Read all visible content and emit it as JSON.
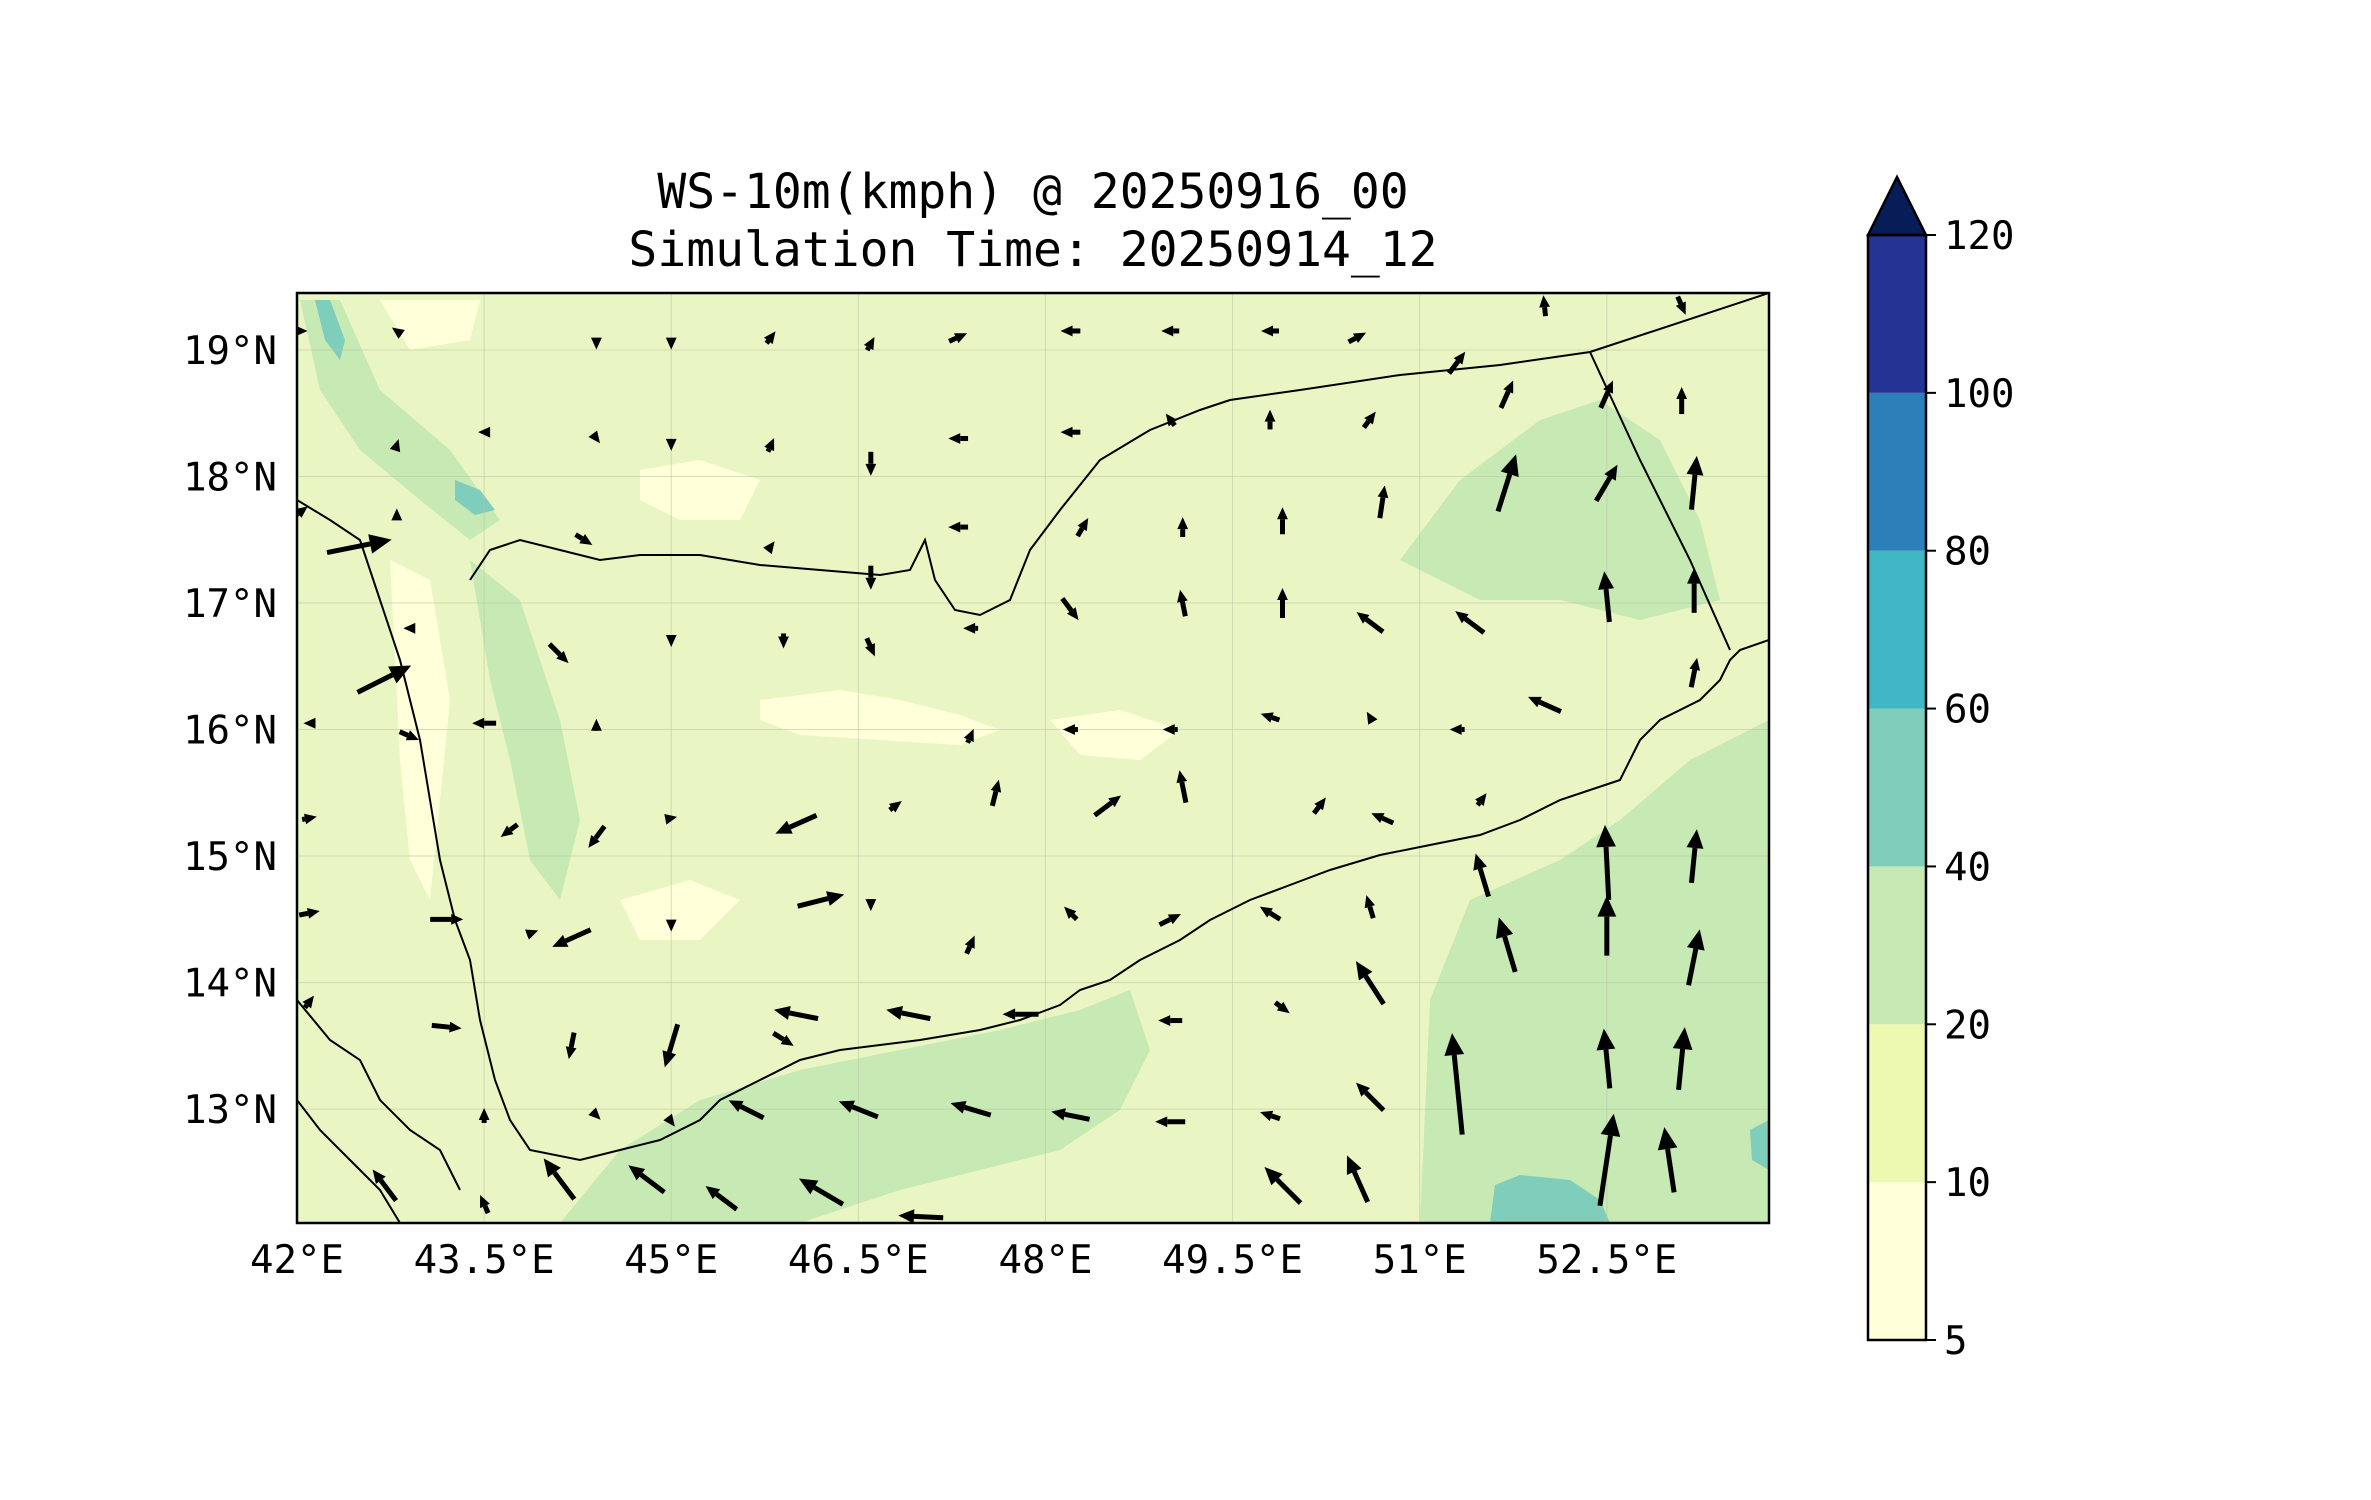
{
  "figure": {
    "title_line1": "WS-10m(kmph) @ 20250916_00",
    "title_line2": "Simulation Time: 20250914_12"
  },
  "map": {
    "lon_range": [
      42.0,
      53.8
    ],
    "lat_range": [
      12.1,
      19.45
    ],
    "lon_ticks": [
      "42°E",
      "43.5°E",
      "45°E",
      "46.5°E",
      "48°E",
      "49.5°E",
      "51°E",
      "52.5°E"
    ],
    "lon_tick_values": [
      42.0,
      43.5,
      45.0,
      46.5,
      48.0,
      49.5,
      51.0,
      52.5
    ],
    "lat_ticks": [
      "13°N",
      "14°N",
      "15°N",
      "16°N",
      "17°N",
      "18°N",
      "19°N"
    ],
    "lat_tick_values": [
      13,
      14,
      15,
      16,
      17,
      18,
      19
    ],
    "grid": true,
    "background_color": "#e9f6c4"
  },
  "colorbar": {
    "levels": [
      "5",
      "10",
      "20",
      "40",
      "60",
      "80",
      "100",
      "120"
    ],
    "colors": [
      "#ffffd9",
      "#edf8b1",
      "#c7e9b4",
      "#7fcdbb",
      "#41b6c4",
      "#2c7fb8",
      "#253494",
      "#081d58"
    ],
    "extend": "max"
  },
  "chart_data": {
    "type": "heatmap",
    "variable": "WS-10m(kmph)",
    "valid_time": "20250916_00",
    "simulation_time": "20250914_12",
    "levels": [
      5,
      10,
      20,
      40,
      60,
      80,
      100,
      120
    ],
    "x_label": "",
    "y_label": "",
    "wind_vectors": [
      {
        "lon": 42.0,
        "lat": 19.15,
        "u": 1.0,
        "v": 0.0,
        "mag": 0.35
      },
      {
        "lon": 42.8,
        "lat": 19.15,
        "u": -0.7,
        "v": 0.5,
        "mag": 0.2
      },
      {
        "lon": 44.4,
        "lat": 19.05,
        "u": 0.0,
        "v": -1.0,
        "mag": 0.2
      },
      {
        "lon": 45.0,
        "lat": 19.05,
        "u": 0.0,
        "v": -1.0,
        "mag": 0.2
      },
      {
        "lon": 45.8,
        "lat": 19.1,
        "u": 0.6,
        "v": 0.8,
        "mag": 0.25
      },
      {
        "lon": 46.6,
        "lat": 19.05,
        "u": 0.5,
        "v": 0.9,
        "mag": 0.25
      },
      {
        "lon": 47.3,
        "lat": 19.1,
        "u": 0.9,
        "v": 0.4,
        "mag": 0.33
      },
      {
        "lon": 48.2,
        "lat": 19.15,
        "u": -1.0,
        "v": 0.0,
        "mag": 0.33
      },
      {
        "lon": 49.0,
        "lat": 19.15,
        "u": -1.0,
        "v": 0.0,
        "mag": 0.3
      },
      {
        "lon": 49.8,
        "lat": 19.15,
        "u": -1.0,
        "v": 0.0,
        "mag": 0.3
      },
      {
        "lon": 50.5,
        "lat": 19.1,
        "u": 0.85,
        "v": 0.45,
        "mag": 0.33
      },
      {
        "lon": 51.3,
        "lat": 18.9,
        "u": 0.6,
        "v": 0.8,
        "mag": 0.45
      },
      {
        "lon": 52.0,
        "lat": 19.35,
        "u": -0.1,
        "v": 1.0,
        "mag": 0.35
      },
      {
        "lon": 53.1,
        "lat": 19.35,
        "u": 0.4,
        "v": -0.9,
        "mag": 0.33
      },
      {
        "lon": 42.8,
        "lat": 18.25,
        "u": 0.3,
        "v": 0.95,
        "mag": 0.2
      },
      {
        "lon": 43.5,
        "lat": 18.35,
        "u": -1.0,
        "v": 0.0,
        "mag": 0.2
      },
      {
        "lon": 44.4,
        "lat": 18.3,
        "u": 0.6,
        "v": -0.8,
        "mag": 0.2
      },
      {
        "lon": 45.0,
        "lat": 18.25,
        "u": 0.0,
        "v": -1.0,
        "mag": 0.2
      },
      {
        "lon": 45.8,
        "lat": 18.25,
        "u": 0.4,
        "v": 0.9,
        "mag": 0.25
      },
      {
        "lon": 46.6,
        "lat": 18.1,
        "u": 0.0,
        "v": -1.0,
        "mag": 0.4
      },
      {
        "lon": 47.3,
        "lat": 18.3,
        "u": -1.0,
        "v": 0.0,
        "mag": 0.33
      },
      {
        "lon": 48.2,
        "lat": 18.35,
        "u": -1.0,
        "v": 0.0,
        "mag": 0.33
      },
      {
        "lon": 49.0,
        "lat": 18.45,
        "u": -0.6,
        "v": 0.8,
        "mag": 0.25
      },
      {
        "lon": 49.8,
        "lat": 18.45,
        "u": 0.0,
        "v": 1.0,
        "mag": 0.33
      },
      {
        "lon": 50.6,
        "lat": 18.45,
        "u": 0.6,
        "v": 0.8,
        "mag": 0.33
      },
      {
        "lon": 51.7,
        "lat": 18.65,
        "u": 0.4,
        "v": 0.9,
        "mag": 0.5
      },
      {
        "lon": 52.5,
        "lat": 18.65,
        "u": 0.4,
        "v": 0.9,
        "mag": 0.5
      },
      {
        "lon": 53.1,
        "lat": 18.6,
        "u": 0.0,
        "v": 1.0,
        "mag": 0.45
      },
      {
        "lon": 42.0,
        "lat": 17.7,
        "u": 0.8,
        "v": 0.6,
        "mag": 0.45
      },
      {
        "lon": 42.5,
        "lat": 17.45,
        "u": 1.0,
        "v": 0.2,
        "mag": 1.1
      },
      {
        "lon": 44.3,
        "lat": 17.5,
        "u": 0.8,
        "v": -0.5,
        "mag": 0.33
      },
      {
        "lon": 45.8,
        "lat": 17.45,
        "u": 0.6,
        "v": 0.8,
        "mag": 0.2
      },
      {
        "lon": 46.6,
        "lat": 17.2,
        "u": 0.0,
        "v": -1.0,
        "mag": 0.4
      },
      {
        "lon": 47.3,
        "lat": 17.6,
        "u": -1.0,
        "v": 0.0,
        "mag": 0.33
      },
      {
        "lon": 48.3,
        "lat": 17.6,
        "u": 0.5,
        "v": 0.85,
        "mag": 0.35
      },
      {
        "lon": 49.1,
        "lat": 17.6,
        "u": 0.0,
        "v": 1.0,
        "mag": 0.33
      },
      {
        "lon": 49.9,
        "lat": 17.65,
        "u": 0.0,
        "v": 1.0,
        "mag": 0.45
      },
      {
        "lon": 50.7,
        "lat": 17.8,
        "u": 0.15,
        "v": 1.0,
        "mag": 0.55
      },
      {
        "lon": 51.7,
        "lat": 17.95,
        "u": 0.3,
        "v": 0.95,
        "mag": 1.0
      },
      {
        "lon": 52.5,
        "lat": 17.95,
        "u": 0.5,
        "v": 0.85,
        "mag": 0.7
      },
      {
        "lon": 53.2,
        "lat": 17.95,
        "u": 0.1,
        "v": 1.0,
        "mag": 0.9
      },
      {
        "lon": 42.8,
        "lat": 17.7,
        "u": 0.0,
        "v": 1.0,
        "mag": 0.2
      },
      {
        "lon": 42.9,
        "lat": 16.8,
        "u": -1.0,
        "v": 0.0,
        "mag": 0.2
      },
      {
        "lon": 42.7,
        "lat": 16.4,
        "u": 1.0,
        "v": 0.5,
        "mag": 1.0
      },
      {
        "lon": 44.1,
        "lat": 16.6,
        "u": 0.7,
        "v": -0.7,
        "mag": 0.45
      },
      {
        "lon": 45.0,
        "lat": 16.7,
        "u": 0.0,
        "v": -1.0,
        "mag": 0.2
      },
      {
        "lon": 45.9,
        "lat": 16.7,
        "u": 0.0,
        "v": -1.0,
        "mag": 0.25
      },
      {
        "lon": 46.6,
        "lat": 16.65,
        "u": 0.4,
        "v": -0.9,
        "mag": 0.33
      },
      {
        "lon": 47.4,
        "lat": 16.8,
        "u": -1.0,
        "v": 0.0,
        "mag": 0.25
      },
      {
        "lon": 48.2,
        "lat": 16.95,
        "u": 0.6,
        "v": -0.8,
        "mag": 0.45
      },
      {
        "lon": 49.1,
        "lat": 17.0,
        "u": -0.2,
        "v": 1.0,
        "mag": 0.45
      },
      {
        "lon": 49.9,
        "lat": 17.0,
        "u": 0.0,
        "v": 1.0,
        "mag": 0.5
      },
      {
        "lon": 50.6,
        "lat": 16.85,
        "u": -0.8,
        "v": 0.6,
        "mag": 0.55
      },
      {
        "lon": 51.4,
        "lat": 16.85,
        "u": -0.8,
        "v": 0.6,
        "mag": 0.6
      },
      {
        "lon": 52.5,
        "lat": 17.05,
        "u": -0.1,
        "v": 1.0,
        "mag": 0.85
      },
      {
        "lon": 53.2,
        "lat": 17.1,
        "u": 0.0,
        "v": 1.0,
        "mag": 0.75
      },
      {
        "lon": 42.1,
        "lat": 16.05,
        "u": -1.0,
        "v": 0.0,
        "mag": 0.2
      },
      {
        "lon": 42.9,
        "lat": 15.95,
        "u": 0.7,
        "v": -0.3,
        "mag": 0.35
      },
      {
        "lon": 43.5,
        "lat": 16.05,
        "u": -1.0,
        "v": 0.0,
        "mag": 0.4
      },
      {
        "lon": 44.4,
        "lat": 16.05,
        "u": 0.0,
        "v": 1.0,
        "mag": 0.15
      },
      {
        "lon": 47.4,
        "lat": 15.95,
        "u": 0.4,
        "v": 0.9,
        "mag": 0.25
      },
      {
        "lon": 48.2,
        "lat": 16.0,
        "u": -1.0,
        "v": 0.0,
        "mag": 0.25
      },
      {
        "lon": 49.0,
        "lat": 16.0,
        "u": -1.0,
        "v": 0.0,
        "mag": 0.25
      },
      {
        "lon": 49.8,
        "lat": 16.1,
        "u": -0.9,
        "v": 0.3,
        "mag": 0.33
      },
      {
        "lon": 50.6,
        "lat": 16.1,
        "u": -0.5,
        "v": 0.85,
        "mag": 0.2
      },
      {
        "lon": 51.3,
        "lat": 16.0,
        "u": -1.0,
        "v": 0.0,
        "mag": 0.25
      },
      {
        "lon": 52.0,
        "lat": 16.2,
        "u": -0.9,
        "v": 0.4,
        "mag": 0.6
      },
      {
        "lon": 53.2,
        "lat": 16.45,
        "u": 0.2,
        "v": 1.0,
        "mag": 0.5
      },
      {
        "lon": 42.1,
        "lat": 15.3,
        "u": 1.0,
        "v": 0.2,
        "mag": 0.25
      },
      {
        "lon": 43.7,
        "lat": 15.2,
        "u": -0.8,
        "v": -0.6,
        "mag": 0.35
      },
      {
        "lon": 44.4,
        "lat": 15.15,
        "u": -0.6,
        "v": -0.8,
        "mag": 0.45
      },
      {
        "lon": 45.0,
        "lat": 15.3,
        "u": 1.0,
        "v": 0.2,
        "mag": 0.2
      },
      {
        "lon": 46.0,
        "lat": 15.25,
        "u": -0.9,
        "v": -0.4,
        "mag": 0.75
      },
      {
        "lon": 46.8,
        "lat": 15.4,
        "u": 0.8,
        "v": 0.6,
        "mag": 0.25
      },
      {
        "lon": 47.6,
        "lat": 15.5,
        "u": 0.25,
        "v": 1.0,
        "mag": 0.45
      },
      {
        "lon": 48.5,
        "lat": 15.4,
        "u": 0.8,
        "v": 0.6,
        "mag": 0.55
      },
      {
        "lon": 49.1,
        "lat": 15.55,
        "u": -0.2,
        "v": 1.0,
        "mag": 0.55
      },
      {
        "lon": 50.2,
        "lat": 15.4,
        "u": 0.6,
        "v": 0.8,
        "mag": 0.33
      },
      {
        "lon": 50.7,
        "lat": 15.3,
        "u": -0.9,
        "v": 0.4,
        "mag": 0.4
      },
      {
        "lon": 51.5,
        "lat": 15.45,
        "u": 0.6,
        "v": 0.8,
        "mag": 0.25
      },
      {
        "lon": 51.5,
        "lat": 14.85,
        "u": -0.3,
        "v": 1.0,
        "mag": 0.75
      },
      {
        "lon": 52.5,
        "lat": 14.95,
        "u": -0.05,
        "v": 1.0,
        "mag": 1.25
      },
      {
        "lon": 53.2,
        "lat": 15.0,
        "u": 0.1,
        "v": 1.0,
        "mag": 0.9
      },
      {
        "lon": 42.1,
        "lat": 14.55,
        "u": 1.0,
        "v": 0.2,
        "mag": 0.35
      },
      {
        "lon": 43.2,
        "lat": 14.5,
        "u": 1.0,
        "v": 0.0,
        "mag": 0.55
      },
      {
        "lon": 43.9,
        "lat": 14.4,
        "u": 0.8,
        "v": 0.3,
        "mag": 0.15
      },
      {
        "lon": 44.2,
        "lat": 14.35,
        "u": -0.9,
        "v": -0.4,
        "mag": 0.7
      },
      {
        "lon": 45.0,
        "lat": 14.45,
        "u": 0.0,
        "v": -1.0,
        "mag": 0.2
      },
      {
        "lon": 46.2,
        "lat": 14.65,
        "u": 1.0,
        "v": 0.25,
        "mag": 0.8
      },
      {
        "lon": 46.6,
        "lat": 14.6,
        "u": 0.0,
        "v": -1.0,
        "mag": 0.15
      },
      {
        "lon": 47.4,
        "lat": 14.3,
        "u": 0.4,
        "v": 0.9,
        "mag": 0.33
      },
      {
        "lon": 48.2,
        "lat": 14.55,
        "u": -0.7,
        "v": 0.7,
        "mag": 0.3
      },
      {
        "lon": 49.0,
        "lat": 14.5,
        "u": 0.8,
        "v": 0.4,
        "mag": 0.4
      },
      {
        "lon": 49.8,
        "lat": 14.55,
        "u": -0.8,
        "v": 0.5,
        "mag": 0.4
      },
      {
        "lon": 50.6,
        "lat": 14.6,
        "u": -0.3,
        "v": 1.0,
        "mag": 0.4
      },
      {
        "lon": 51.7,
        "lat": 14.3,
        "u": -0.3,
        "v": 1.0,
        "mag": 0.95
      },
      {
        "lon": 52.5,
        "lat": 14.45,
        "u": 0.0,
        "v": 1.0,
        "mag": 1.0
      },
      {
        "lon": 53.2,
        "lat": 14.2,
        "u": 0.2,
        "v": 1.0,
        "mag": 0.95
      },
      {
        "lon": 42.1,
        "lat": 13.85,
        "u": 0.6,
        "v": 0.8,
        "mag": 0.25
      },
      {
        "lon": 43.2,
        "lat": 13.65,
        "u": 1.0,
        "v": -0.1,
        "mag": 0.5
      },
      {
        "lon": 44.2,
        "lat": 13.5,
        "u": -0.2,
        "v": -1.0,
        "mag": 0.45
      },
      {
        "lon": 45.0,
        "lat": 13.5,
        "u": -0.3,
        "v": -1.0,
        "mag": 0.75
      },
      {
        "lon": 46.0,
        "lat": 13.75,
        "u": -1.0,
        "v": 0.2,
        "mag": 0.75
      },
      {
        "lon": 45.9,
        "lat": 13.55,
        "u": 0.8,
        "v": -0.5,
        "mag": 0.4
      },
      {
        "lon": 46.9,
        "lat": 13.75,
        "u": -1.0,
        "v": 0.2,
        "mag": 0.75
      },
      {
        "lon": 47.8,
        "lat": 13.75,
        "u": -1.0,
        "v": 0.0,
        "mag": 0.6
      },
      {
        "lon": 49.0,
        "lat": 13.7,
        "u": -1.0,
        "v": 0.0,
        "mag": 0.4
      },
      {
        "lon": 49.9,
        "lat": 13.8,
        "u": 0.8,
        "v": -0.6,
        "mag": 0.3
      },
      {
        "lon": 50.6,
        "lat": 14.0,
        "u": -0.55,
        "v": 0.85,
        "mag": 0.85
      },
      {
        "lon": 51.3,
        "lat": 13.2,
        "u": -0.1,
        "v": 1.0,
        "mag": 1.7
      },
      {
        "lon": 52.5,
        "lat": 13.4,
        "u": -0.1,
        "v": 1.0,
        "mag": 1.0
      },
      {
        "lon": 53.1,
        "lat": 13.4,
        "u": 0.1,
        "v": 1.0,
        "mag": 1.05
      },
      {
        "lon": 43.5,
        "lat": 12.95,
        "u": 0.0,
        "v": 1.0,
        "mag": 0.25
      },
      {
        "lon": 44.4,
        "lat": 12.95,
        "u": 0.7,
        "v": -0.7,
        "mag": 0.2
      },
      {
        "lon": 45.0,
        "lat": 12.9,
        "u": 0.6,
        "v": -0.8,
        "mag": 0.2
      },
      {
        "lon": 45.6,
        "lat": 13.0,
        "u": -1.0,
        "v": 0.5,
        "mag": 0.65
      },
      {
        "lon": 46.5,
        "lat": 13.0,
        "u": -1.0,
        "v": 0.4,
        "mag": 0.7
      },
      {
        "lon": 47.4,
        "lat": 13.0,
        "u": -1.0,
        "v": 0.3,
        "mag": 0.7
      },
      {
        "lon": 48.2,
        "lat": 12.95,
        "u": -1.0,
        "v": 0.2,
        "mag": 0.65
      },
      {
        "lon": 49.0,
        "lat": 12.9,
        "u": -1.0,
        "v": 0.0,
        "mag": 0.5
      },
      {
        "lon": 49.8,
        "lat": 12.95,
        "u": -0.9,
        "v": 0.3,
        "mag": 0.35
      },
      {
        "lon": 50.6,
        "lat": 13.1,
        "u": -0.7,
        "v": 0.7,
        "mag": 0.65
      },
      {
        "lon": 52.5,
        "lat": 12.6,
        "u": 0.15,
        "v": 1.0,
        "mag": 1.55
      },
      {
        "lon": 53.0,
        "lat": 12.6,
        "u": -0.15,
        "v": 1.0,
        "mag": 1.1
      },
      {
        "lon": 42.7,
        "lat": 12.4,
        "u": -0.6,
        "v": 0.8,
        "mag": 0.65
      },
      {
        "lon": 43.5,
        "lat": 12.25,
        "u": -0.4,
        "v": 0.9,
        "mag": 0.33
      },
      {
        "lon": 44.1,
        "lat": 12.45,
        "u": -0.6,
        "v": 0.8,
        "mag": 0.85
      },
      {
        "lon": 44.8,
        "lat": 12.45,
        "u": -0.8,
        "v": 0.6,
        "mag": 0.75
      },
      {
        "lon": 45.4,
        "lat": 12.3,
        "u": -0.8,
        "v": 0.6,
        "mag": 0.65
      },
      {
        "lon": 46.2,
        "lat": 12.35,
        "u": -0.85,
        "v": 0.5,
        "mag": 0.85
      },
      {
        "lon": 47.0,
        "lat": 12.15,
        "u": -1.0,
        "v": 0.05,
        "mag": 0.75
      },
      {
        "lon": 49.9,
        "lat": 12.4,
        "u": -0.7,
        "v": 0.7,
        "mag": 0.85
      },
      {
        "lon": 50.5,
        "lat": 12.45,
        "u": -0.4,
        "v": 0.9,
        "mag": 0.85
      }
    ]
  }
}
